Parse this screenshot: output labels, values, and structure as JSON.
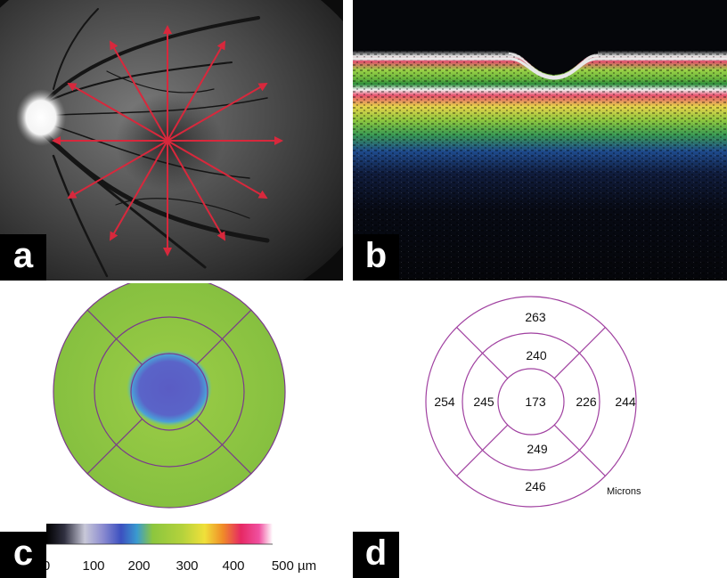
{
  "panels": {
    "a": {
      "letter": "a"
    },
    "b": {
      "letter": "b"
    },
    "c": {
      "letter": "c"
    },
    "d": {
      "letter": "d"
    }
  },
  "colorbar": {
    "ticks": [
      "0",
      "100",
      "200",
      "300",
      "400",
      "500 µm"
    ]
  },
  "thickness_map": {
    "unit_label": "Microns",
    "outer": {
      "superior": "263",
      "temporal": "254",
      "inferior": "246",
      "nasal": "244"
    },
    "inner": {
      "superior": "240",
      "temporal": "245",
      "inferior": "249",
      "nasal": "226"
    },
    "center": "173"
  },
  "colors": {
    "scan_lines": "#d8283c",
    "ring_lines": "#a040a0",
    "map_green": "#8cc63e",
    "map_blue": "#5a64c8"
  }
}
